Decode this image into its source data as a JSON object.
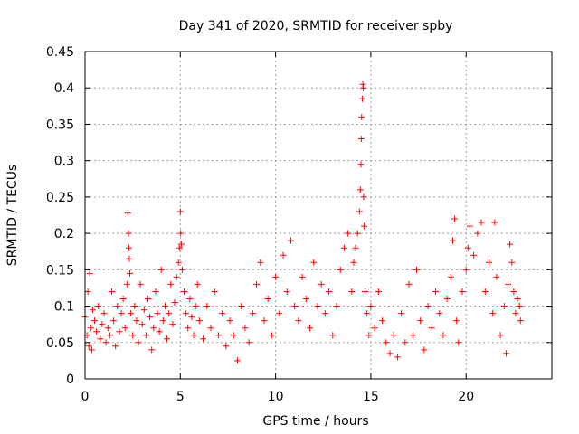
{
  "chart_data": {
    "type": "scatter",
    "title": "Day 341 of 2020, SRMTID for receiver spby",
    "xlabel": "GPS time / hours",
    "ylabel": "SRMTID / TECUs",
    "xlim": [
      0,
      24.5
    ],
    "ylim": [
      0,
      0.45
    ],
    "x_ticks": [
      0,
      5,
      10,
      15,
      20
    ],
    "y_ticks": [
      0,
      0.05,
      0.1,
      0.15,
      0.2,
      0.25,
      0.3,
      0.35,
      0.4,
      0.45
    ],
    "x_tick_labels": [
      "0",
      "5",
      "10",
      "15",
      "20"
    ],
    "y_tick_labels": [
      "0",
      "0.05",
      "0.1",
      "0.15",
      "0.2",
      "0.25",
      "0.3",
      "0.35",
      "0.4",
      "0.45"
    ],
    "grid": true,
    "marker": "+",
    "colors": {
      "series": "#ff0000",
      "grid": "#a0a0a0"
    },
    "series": [
      {
        "name": "SRMTID",
        "points": [
          [
            0.0,
            0.085
          ],
          [
            0.1,
            0.06
          ],
          [
            0.15,
            0.12
          ],
          [
            0.2,
            0.045
          ],
          [
            0.25,
            0.145
          ],
          [
            0.3,
            0.07
          ],
          [
            0.35,
            0.04
          ],
          [
            0.4,
            0.095
          ],
          [
            0.5,
            0.08
          ],
          [
            0.6,
            0.065
          ],
          [
            0.7,
            0.1
          ],
          [
            0.8,
            0.055
          ],
          [
            0.9,
            0.075
          ],
          [
            1.0,
            0.09
          ],
          [
            1.1,
            0.05
          ],
          [
            1.2,
            0.07
          ],
          [
            1.3,
            0.06
          ],
          [
            1.4,
            0.12
          ],
          [
            1.5,
            0.08
          ],
          [
            1.6,
            0.045
          ],
          [
            1.7,
            0.1
          ],
          [
            1.8,
            0.065
          ],
          [
            1.9,
            0.09
          ],
          [
            2.0,
            0.11
          ],
          [
            2.1,
            0.07
          ],
          [
            2.2,
            0.13
          ],
          [
            2.25,
            0.228
          ],
          [
            2.28,
            0.2
          ],
          [
            2.3,
            0.18
          ],
          [
            2.32,
            0.165
          ],
          [
            2.35,
            0.145
          ],
          [
            2.4,
            0.09
          ],
          [
            2.5,
            0.06
          ],
          [
            2.6,
            0.1
          ],
          [
            2.7,
            0.08
          ],
          [
            2.8,
            0.05
          ],
          [
            2.9,
            0.13
          ],
          [
            3.0,
            0.075
          ],
          [
            3.1,
            0.095
          ],
          [
            3.2,
            0.06
          ],
          [
            3.3,
            0.11
          ],
          [
            3.4,
            0.085
          ],
          [
            3.5,
            0.04
          ],
          [
            3.6,
            0.07
          ],
          [
            3.7,
            0.12
          ],
          [
            3.8,
            0.09
          ],
          [
            3.9,
            0.065
          ],
          [
            4.0,
            0.15
          ],
          [
            4.1,
            0.08
          ],
          [
            4.2,
            0.1
          ],
          [
            4.3,
            0.055
          ],
          [
            4.4,
            0.09
          ],
          [
            4.5,
            0.13
          ],
          [
            4.6,
            0.075
          ],
          [
            4.7,
            0.105
          ],
          [
            4.8,
            0.14
          ],
          [
            4.9,
            0.16
          ],
          [
            4.95,
            0.18
          ],
          [
            5.0,
            0.23
          ],
          [
            5.02,
            0.2
          ],
          [
            5.05,
            0.185
          ],
          [
            5.1,
            0.15
          ],
          [
            5.2,
            0.12
          ],
          [
            5.3,
            0.09
          ],
          [
            5.4,
            0.07
          ],
          [
            5.5,
            0.11
          ],
          [
            5.6,
            0.085
          ],
          [
            5.7,
            0.06
          ],
          [
            5.8,
            0.1
          ],
          [
            5.9,
            0.13
          ],
          [
            6.0,
            0.08
          ],
          [
            6.2,
            0.055
          ],
          [
            6.4,
            0.1
          ],
          [
            6.6,
            0.07
          ],
          [
            6.8,
            0.12
          ],
          [
            7.0,
            0.06
          ],
          [
            7.2,
            0.09
          ],
          [
            7.4,
            0.045
          ],
          [
            7.6,
            0.08
          ],
          [
            7.8,
            0.06
          ],
          [
            8.0,
            0.025
          ],
          [
            8.2,
            0.1
          ],
          [
            8.4,
            0.07
          ],
          [
            8.6,
            0.05
          ],
          [
            8.8,
            0.09
          ],
          [
            9.0,
            0.13
          ],
          [
            9.2,
            0.16
          ],
          [
            9.4,
            0.08
          ],
          [
            9.6,
            0.11
          ],
          [
            9.8,
            0.06
          ],
          [
            10.0,
            0.14
          ],
          [
            10.2,
            0.09
          ],
          [
            10.4,
            0.17
          ],
          [
            10.6,
            0.12
          ],
          [
            10.8,
            0.19
          ],
          [
            11.0,
            0.1
          ],
          [
            11.2,
            0.08
          ],
          [
            11.4,
            0.14
          ],
          [
            11.6,
            0.11
          ],
          [
            11.8,
            0.07
          ],
          [
            12.0,
            0.16
          ],
          [
            12.2,
            0.1
          ],
          [
            12.4,
            0.13
          ],
          [
            12.6,
            0.09
          ],
          [
            12.8,
            0.12
          ],
          [
            13.0,
            0.06
          ],
          [
            13.2,
            0.1
          ],
          [
            13.4,
            0.15
          ],
          [
            13.6,
            0.18
          ],
          [
            13.8,
            0.2
          ],
          [
            14.0,
            0.12
          ],
          [
            14.1,
            0.16
          ],
          [
            14.2,
            0.18
          ],
          [
            14.3,
            0.2
          ],
          [
            14.4,
            0.23
          ],
          [
            14.45,
            0.26
          ],
          [
            14.48,
            0.295
          ],
          [
            14.5,
            0.33
          ],
          [
            14.52,
            0.36
          ],
          [
            14.55,
            0.385
          ],
          [
            14.58,
            0.405
          ],
          [
            14.6,
            0.4
          ],
          [
            14.62,
            0.25
          ],
          [
            14.65,
            0.21
          ],
          [
            14.7,
            0.12
          ],
          [
            14.8,
            0.09
          ],
          [
            14.9,
            0.06
          ],
          [
            15.0,
            0.1
          ],
          [
            15.2,
            0.07
          ],
          [
            15.4,
            0.12
          ],
          [
            15.6,
            0.08
          ],
          [
            15.8,
            0.05
          ],
          [
            16.0,
            0.035
          ],
          [
            16.2,
            0.06
          ],
          [
            16.4,
            0.03
          ],
          [
            16.6,
            0.09
          ],
          [
            16.8,
            0.05
          ],
          [
            17.0,
            0.13
          ],
          [
            17.2,
            0.06
          ],
          [
            17.4,
            0.15
          ],
          [
            17.6,
            0.08
          ],
          [
            17.8,
            0.04
          ],
          [
            18.0,
            0.1
          ],
          [
            18.2,
            0.07
          ],
          [
            18.4,
            0.12
          ],
          [
            18.6,
            0.09
          ],
          [
            18.8,
            0.06
          ],
          [
            19.0,
            0.11
          ],
          [
            19.2,
            0.14
          ],
          [
            19.3,
            0.19
          ],
          [
            19.4,
            0.22
          ],
          [
            19.5,
            0.08
          ],
          [
            19.6,
            0.05
          ],
          [
            19.8,
            0.12
          ],
          [
            20.0,
            0.15
          ],
          [
            20.1,
            0.18
          ],
          [
            20.2,
            0.21
          ],
          [
            20.4,
            0.17
          ],
          [
            20.6,
            0.2
          ],
          [
            20.8,
            0.215
          ],
          [
            21.0,
            0.12
          ],
          [
            21.2,
            0.16
          ],
          [
            21.4,
            0.09
          ],
          [
            21.5,
            0.215
          ],
          [
            21.6,
            0.14
          ],
          [
            21.8,
            0.06
          ],
          [
            22.0,
            0.1
          ],
          [
            22.1,
            0.035
          ],
          [
            22.2,
            0.13
          ],
          [
            22.3,
            0.185
          ],
          [
            22.4,
            0.16
          ],
          [
            22.5,
            0.12
          ],
          [
            22.6,
            0.09
          ],
          [
            22.7,
            0.11
          ],
          [
            22.8,
            0.1
          ],
          [
            22.85,
            0.08
          ]
        ]
      }
    ]
  }
}
